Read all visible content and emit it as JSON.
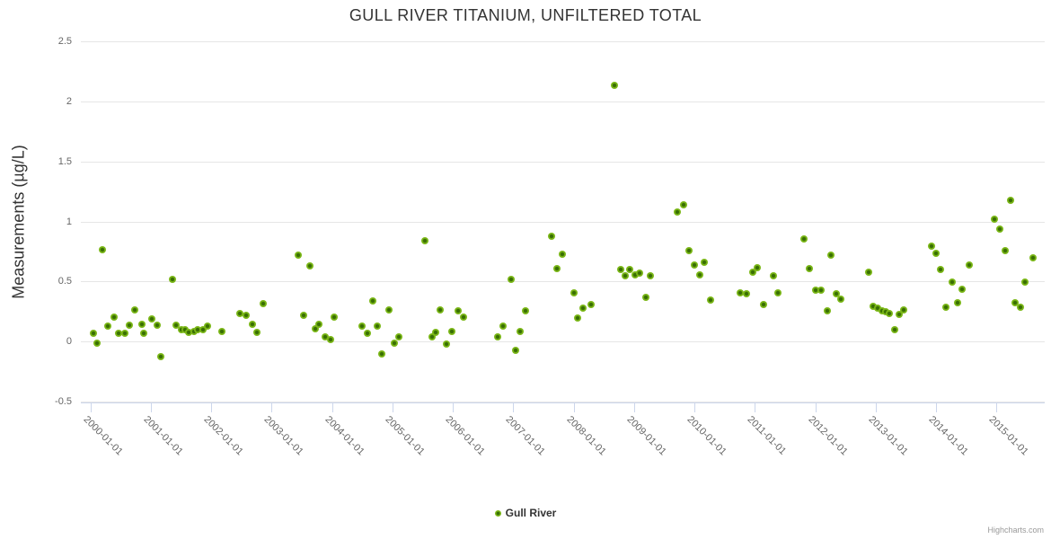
{
  "title": "GULL RIVER TITANIUM, UNFILTERED TOTAL",
  "legend": {
    "series_label": "Gull River"
  },
  "credits": {
    "label": "Highcharts.com"
  },
  "colors": {
    "marker_outer": "#7cb818",
    "marker_inner": "#386e03",
    "grid": "#e6e6e6",
    "axis": "#ccd6eb",
    "text": "#333333",
    "tick_text": "#666666",
    "credits_text": "#999999"
  },
  "chart_data": {
    "type": "scatter",
    "title": "GULL RIVER TITANIUM, UNFILTERED TOTAL",
    "xlabel": "",
    "ylabel": "Measurements (µg/L)",
    "grid": true,
    "legend_position": "bottom-center",
    "xlim": [
      1999.84,
      2015.8
    ],
    "ylim": [
      -0.5,
      2.5
    ],
    "x_tick_years": [
      2000,
      2001,
      2002,
      2003,
      2004,
      2005,
      2006,
      2007,
      2008,
      2009,
      2010,
      2011,
      2012,
      2013,
      2014,
      2015
    ],
    "x_tick_labels": [
      "2000-01-01",
      "2001-01-01",
      "2002-01-01",
      "2003-01-01",
      "2004-01-01",
      "2005-01-01",
      "2006-01-01",
      "2007-01-01",
      "2008-01-01",
      "2009-01-01",
      "2010-01-01",
      "2011-01-01",
      "2012-01-01",
      "2013-01-01",
      "2014-01-01",
      "2015-01-01"
    ],
    "y_ticks": [
      -0.5,
      0,
      0.5,
      1,
      1.5,
      2,
      2.5
    ],
    "y_tick_labels": [
      "-0.5",
      "0",
      "0.5",
      "1",
      "1.5",
      "2",
      "2.5"
    ],
    "series": [
      {
        "name": "Gull River",
        "color": "#7cb818",
        "points": [
          [
            2000.05,
            0.07
          ],
          [
            2000.11,
            -0.01
          ],
          [
            2000.2,
            0.77
          ],
          [
            2000.29,
            0.13
          ],
          [
            2000.39,
            0.21
          ],
          [
            2000.47,
            0.07
          ],
          [
            2000.57,
            0.07
          ],
          [
            2000.65,
            0.14
          ],
          [
            2000.73,
            0.27
          ],
          [
            2000.85,
            0.15
          ],
          [
            2000.88,
            0.07
          ],
          [
            2001.01,
            0.19
          ],
          [
            2001.1,
            0.14
          ],
          [
            2001.17,
            -0.12
          ],
          [
            2001.36,
            0.52
          ],
          [
            2001.42,
            0.14
          ],
          [
            2001.5,
            0.1
          ],
          [
            2001.57,
            0.1
          ],
          [
            2001.63,
            0.08
          ],
          [
            2001.71,
            0.09
          ],
          [
            2001.78,
            0.1
          ],
          [
            2001.86,
            0.1
          ],
          [
            2001.94,
            0.13
          ],
          [
            2002.17,
            0.09
          ],
          [
            2002.47,
            0.24
          ],
          [
            2002.58,
            0.22
          ],
          [
            2002.68,
            0.15
          ],
          [
            2002.75,
            0.08
          ],
          [
            2002.86,
            0.32
          ],
          [
            2003.44,
            0.72
          ],
          [
            2003.53,
            0.22
          ],
          [
            2003.63,
            0.63
          ],
          [
            2003.72,
            0.11
          ],
          [
            2003.78,
            0.15
          ],
          [
            2003.88,
            0.04
          ],
          [
            2003.98,
            0.02
          ],
          [
            2004.04,
            0.21
          ],
          [
            2004.5,
            0.13
          ],
          [
            2004.59,
            0.07
          ],
          [
            2004.67,
            0.34
          ],
          [
            2004.75,
            0.13
          ],
          [
            2004.83,
            -0.1
          ],
          [
            2004.94,
            0.27
          ],
          [
            2005.03,
            -0.01
          ],
          [
            2005.11,
            0.04
          ],
          [
            2005.54,
            0.84
          ],
          [
            2005.65,
            0.04
          ],
          [
            2005.71,
            0.08
          ],
          [
            2005.79,
            0.27
          ],
          [
            2005.89,
            -0.02
          ],
          [
            2005.98,
            0.09
          ],
          [
            2006.09,
            0.26
          ],
          [
            2006.17,
            0.21
          ],
          [
            2006.74,
            0.04
          ],
          [
            2006.83,
            0.13
          ],
          [
            2006.96,
            0.52
          ],
          [
            2007.04,
            -0.07
          ],
          [
            2007.12,
            0.09
          ],
          [
            2007.21,
            0.26
          ],
          [
            2007.64,
            0.88
          ],
          [
            2007.72,
            0.61
          ],
          [
            2007.81,
            0.73
          ],
          [
            2008.0,
            0.41
          ],
          [
            2008.07,
            0.2
          ],
          [
            2008.16,
            0.28
          ],
          [
            2008.29,
            0.31
          ],
          [
            2008.68,
            2.14
          ],
          [
            2008.78,
            0.6
          ],
          [
            2008.85,
            0.55
          ],
          [
            2008.93,
            0.6
          ],
          [
            2009.02,
            0.56
          ],
          [
            2009.09,
            0.57
          ],
          [
            2009.2,
            0.37
          ],
          [
            2009.27,
            0.55
          ],
          [
            2009.72,
            1.08
          ],
          [
            2009.82,
            1.14
          ],
          [
            2009.91,
            0.76
          ],
          [
            2010.0,
            0.64
          ],
          [
            2010.09,
            0.56
          ],
          [
            2010.16,
            0.66
          ],
          [
            2010.27,
            0.35
          ],
          [
            2010.76,
            0.41
          ],
          [
            2010.86,
            0.4
          ],
          [
            2010.97,
            0.58
          ],
          [
            2011.04,
            0.62
          ],
          [
            2011.14,
            0.31
          ],
          [
            2011.31,
            0.55
          ],
          [
            2011.38,
            0.41
          ],
          [
            2011.81,
            0.86
          ],
          [
            2011.91,
            0.61
          ],
          [
            2012.0,
            0.43
          ],
          [
            2012.09,
            0.43
          ],
          [
            2012.2,
            0.26
          ],
          [
            2012.26,
            0.72
          ],
          [
            2012.35,
            0.4
          ],
          [
            2012.43,
            0.36
          ],
          [
            2012.89,
            0.58
          ],
          [
            2012.96,
            0.3
          ],
          [
            2013.03,
            0.28
          ],
          [
            2013.11,
            0.26
          ],
          [
            2013.17,
            0.25
          ],
          [
            2013.23,
            0.24
          ],
          [
            2013.31,
            0.1
          ],
          [
            2013.39,
            0.23
          ],
          [
            2013.47,
            0.27
          ],
          [
            2013.93,
            0.8
          ],
          [
            2014.0,
            0.74
          ],
          [
            2014.08,
            0.6
          ],
          [
            2014.16,
            0.29
          ],
          [
            2014.27,
            0.5
          ],
          [
            2014.35,
            0.33
          ],
          [
            2014.43,
            0.44
          ],
          [
            2014.55,
            0.64
          ],
          [
            2014.97,
            1.02
          ],
          [
            2015.06,
            0.94
          ],
          [
            2015.15,
            0.76
          ],
          [
            2015.23,
            1.18
          ],
          [
            2015.31,
            0.33
          ],
          [
            2015.4,
            0.29
          ],
          [
            2015.47,
            0.5
          ],
          [
            2015.61,
            0.7
          ]
        ]
      }
    ]
  }
}
